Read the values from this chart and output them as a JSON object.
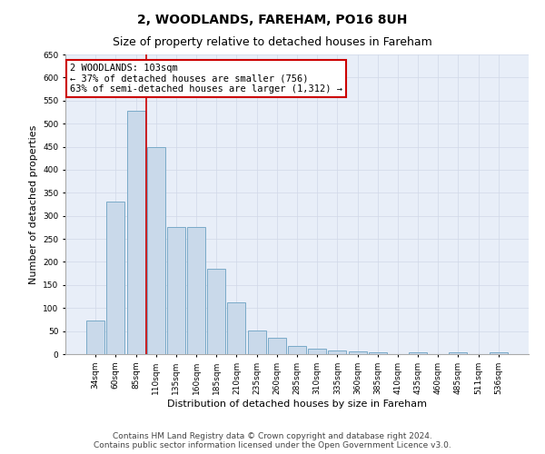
{
  "title": "2, WOODLANDS, FAREHAM, PO16 8UH",
  "subtitle": "Size of property relative to detached houses in Fareham",
  "xlabel": "Distribution of detached houses by size in Fareham",
  "ylabel": "Number of detached properties",
  "categories": [
    "34sqm",
    "60sqm",
    "85sqm",
    "110sqm",
    "135sqm",
    "160sqm",
    "185sqm",
    "210sqm",
    "235sqm",
    "260sqm",
    "285sqm",
    "310sqm",
    "335sqm",
    "360sqm",
    "385sqm",
    "410sqm",
    "435sqm",
    "460sqm",
    "485sqm",
    "511sqm",
    "536sqm"
  ],
  "values": [
    72,
    330,
    527,
    450,
    275,
    275,
    185,
    112,
    51,
    35,
    17,
    12,
    8,
    5,
    4,
    0,
    4,
    0,
    4,
    0,
    4
  ],
  "bar_color": "#c9d9ea",
  "bar_edge_color": "#7aaac8",
  "grid_color": "#d0d8e8",
  "bg_color": "#e8eef8",
  "annotation_box_facecolor": "#ffffff",
  "annotation_border_color": "#cc0000",
  "vline_color": "#cc0000",
  "vline_x_index": 3,
  "annotation_text_line1": "2 WOODLANDS: 103sqm",
  "annotation_text_line2": "← 37% of detached houses are smaller (756)",
  "annotation_text_line3": "63% of semi-detached houses are larger (1,312) →",
  "footer_line1": "Contains HM Land Registry data © Crown copyright and database right 2024.",
  "footer_line2": "Contains public sector information licensed under the Open Government Licence v3.0.",
  "ylim_max": 650,
  "yticks": [
    0,
    50,
    100,
    150,
    200,
    250,
    300,
    350,
    400,
    450,
    500,
    550,
    600,
    650
  ],
  "fig_width": 6.0,
  "fig_height": 5.0,
  "dpi": 100,
  "title_fontsize": 10,
  "subtitle_fontsize": 9,
  "axis_label_fontsize": 8,
  "tick_fontsize": 6.5,
  "annotation_fontsize": 7.5,
  "footer_fontsize": 6.5
}
